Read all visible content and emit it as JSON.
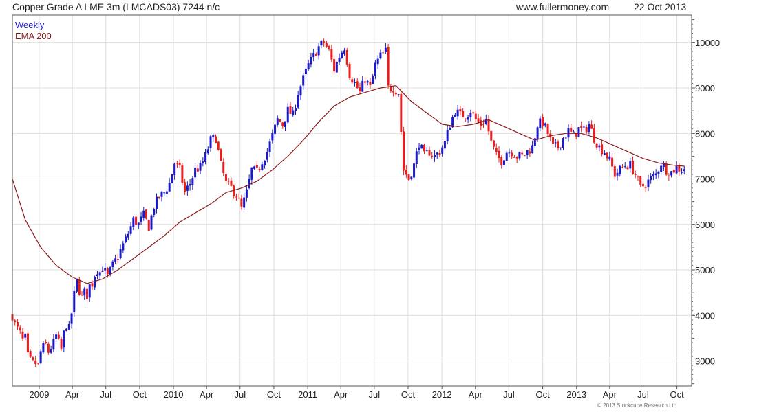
{
  "header": {
    "title": "Copper Grade A LME 3m (LMCADS03) 7244 n/c",
    "site": "www.fullermoney.com",
    "date": "22 Oct 2013"
  },
  "copyright": "© 2013 Stockcube Research Ltd",
  "colors": {
    "up": "#1a1acc",
    "down": "#ee1c1c",
    "ema": "#8b1a1a",
    "grid": "#dcdcdc",
    "frame": "#555555"
  },
  "chart_data": {
    "type": "candlestick",
    "frequency": "weekly",
    "legend": [
      {
        "name": "Weekly",
        "color": "#1a1acc"
      },
      {
        "name": "EMA 200",
        "color": "#8b1a1a"
      }
    ],
    "legend_position": "top-left",
    "ylim": [
      2450,
      10600
    ],
    "yticks": [
      3000,
      4000,
      5000,
      6000,
      7000,
      8000,
      9000,
      10000
    ],
    "y_axis_side": "right",
    "grid": true,
    "x_ticks": [
      {
        "label": "2009",
        "date": "2009-01-01"
      },
      {
        "label": "Apr",
        "date": "2009-04-01"
      },
      {
        "label": "Jul",
        "date": "2009-07-01"
      },
      {
        "label": "Oct",
        "date": "2009-10-01"
      },
      {
        "label": "2010",
        "date": "2010-01-01"
      },
      {
        "label": "Apr",
        "date": "2010-04-01"
      },
      {
        "label": "Jul",
        "date": "2010-07-01"
      },
      {
        "label": "Oct",
        "date": "2010-10-01"
      },
      {
        "label": "2011",
        "date": "2011-01-01"
      },
      {
        "label": "Apr",
        "date": "2011-04-01"
      },
      {
        "label": "Jul",
        "date": "2011-07-01"
      },
      {
        "label": "Oct",
        "date": "2011-10-01"
      },
      {
        "label": "2012",
        "date": "2012-01-01"
      },
      {
        "label": "Apr",
        "date": "2012-04-01"
      },
      {
        "label": "Jul",
        "date": "2012-07-01"
      },
      {
        "label": "Oct",
        "date": "2012-10-01"
      },
      {
        "label": "2013",
        "date": "2013-01-01"
      },
      {
        "label": "Apr",
        "date": "2013-04-01"
      },
      {
        "label": "Jul",
        "date": "2013-07-01"
      },
      {
        "label": "Oct",
        "date": "2013-10-01"
      }
    ],
    "x_range": [
      "2008-10-20",
      "2013-11-10"
    ],
    "close_path": [
      [
        "2008-10-20",
        4000
      ],
      [
        "2008-10-27",
        3800
      ],
      [
        "2008-11-03",
        3700
      ],
      [
        "2008-11-10",
        3600
      ],
      [
        "2008-11-17",
        3450
      ],
      [
        "2008-11-24",
        3500
      ],
      [
        "2008-12-01",
        3100
      ],
      [
        "2008-12-08",
        3000
      ],
      [
        "2008-12-15",
        2950
      ],
      [
        "2008-12-22",
        2950
      ],
      [
        "2008-12-29",
        2900
      ],
      [
        "2009-01-05",
        3200
      ],
      [
        "2009-01-12",
        3300
      ],
      [
        "2009-01-19",
        3350
      ],
      [
        "2009-01-26",
        3200
      ],
      [
        "2009-02-02",
        3300
      ],
      [
        "2009-02-09",
        3400
      ],
      [
        "2009-02-16",
        3550
      ],
      [
        "2009-02-23",
        3400
      ],
      [
        "2009-03-02",
        3250
      ],
      [
        "2009-03-09",
        3600
      ],
      [
        "2009-03-16",
        3800
      ],
      [
        "2009-03-23",
        3700
      ],
      [
        "2009-03-30",
        4050
      ],
      [
        "2009-04-06",
        4450
      ],
      [
        "2009-04-13",
        4750
      ],
      [
        "2009-04-20",
        4550
      ],
      [
        "2009-04-27",
        4400
      ],
      [
        "2009-05-04",
        4500
      ],
      [
        "2009-05-11",
        4450
      ],
      [
        "2009-05-18",
        4650
      ],
      [
        "2009-05-25",
        4700
      ],
      [
        "2009-06-01",
        4900
      ],
      [
        "2009-06-08",
        5000
      ],
      [
        "2009-06-15",
        4950
      ],
      [
        "2009-06-22",
        5050
      ],
      [
        "2009-07-06",
        4850
      ],
      [
        "2009-07-20",
        5100
      ],
      [
        "2009-08-03",
        5300
      ],
      [
        "2009-08-17",
        5550
      ],
      [
        "2009-08-31",
        5800
      ],
      [
        "2009-09-14",
        6100
      ],
      [
        "2009-09-28",
        6000
      ],
      [
        "2009-10-12",
        6200
      ],
      [
        "2009-10-26",
        5950
      ],
      [
        "2009-11-09",
        6400
      ],
      [
        "2009-11-23",
        6600
      ],
      [
        "2009-12-07",
        6700
      ],
      [
        "2009-12-21",
        6900
      ],
      [
        "2010-01-04",
        7350
      ],
      [
        "2010-01-18",
        7200
      ],
      [
        "2010-02-01",
        6700
      ],
      [
        "2010-02-15",
        6900
      ],
      [
        "2010-03-01",
        7200
      ],
      [
        "2010-03-15",
        7250
      ],
      [
        "2010-03-29",
        7500
      ],
      [
        "2010-04-12",
        7850
      ],
      [
        "2010-04-26",
        7900
      ],
      [
        "2010-05-10",
        7300
      ],
      [
        "2010-05-24",
        6900
      ],
      [
        "2010-06-07",
        6800
      ],
      [
        "2010-06-21",
        6650
      ],
      [
        "2010-07-05",
        6350
      ],
      [
        "2010-07-19",
        6700
      ],
      [
        "2010-08-02",
        7200
      ],
      [
        "2010-08-16",
        7150
      ],
      [
        "2010-08-30",
        7400
      ],
      [
        "2010-09-13",
        7600
      ],
      [
        "2010-09-27",
        7950
      ],
      [
        "2010-10-11",
        8300
      ],
      [
        "2010-10-25",
        8200
      ],
      [
        "2010-11-08",
        8500
      ],
      [
        "2010-11-22",
        8400
      ],
      [
        "2010-12-06",
        8900
      ],
      [
        "2010-12-20",
        9200
      ],
      [
        "2011-01-03",
        9500
      ],
      [
        "2011-01-17",
        9700
      ],
      [
        "2011-01-31",
        9900
      ],
      [
        "2011-02-14",
        10000
      ],
      [
        "2011-02-28",
        9800
      ],
      [
        "2011-03-14",
        9400
      ],
      [
        "2011-03-28",
        9700
      ],
      [
        "2011-04-11",
        9900
      ],
      [
        "2011-04-25",
        9300
      ],
      [
        "2011-05-09",
        9100
      ],
      [
        "2011-05-23",
        8900
      ],
      [
        "2011-06-06",
        9200
      ],
      [
        "2011-06-20",
        9000
      ],
      [
        "2011-07-04",
        9500
      ],
      [
        "2011-07-18",
        9700
      ],
      [
        "2011-08-01",
        9800
      ],
      [
        "2011-08-08",
        9000
      ],
      [
        "2011-08-22",
        9000
      ],
      [
        "2011-09-05",
        8900
      ],
      [
        "2011-09-19",
        7200
      ],
      [
        "2011-10-03",
        7000
      ],
      [
        "2011-10-17",
        7300
      ],
      [
        "2011-10-31",
        7800
      ],
      [
        "2011-11-14",
        7500
      ],
      [
        "2011-11-28",
        7600
      ],
      [
        "2011-12-12",
        7500
      ],
      [
        "2011-12-26",
        7600
      ],
      [
        "2012-01-09",
        7800
      ],
      [
        "2012-01-23",
        8200
      ],
      [
        "2012-02-06",
        8500
      ],
      [
        "2012-02-20",
        8400
      ],
      [
        "2012-03-05",
        8400
      ],
      [
        "2012-03-19",
        8500
      ],
      [
        "2012-04-02",
        8300
      ],
      [
        "2012-04-16",
        8200
      ],
      [
        "2012-04-30",
        8300
      ],
      [
        "2012-05-14",
        7800
      ],
      [
        "2012-05-28",
        7500
      ],
      [
        "2012-06-11",
        7400
      ],
      [
        "2012-06-25",
        7600
      ],
      [
        "2012-07-09",
        7600
      ],
      [
        "2012-07-23",
        7500
      ],
      [
        "2012-08-06",
        7500
      ],
      [
        "2012-08-20",
        7600
      ],
      [
        "2012-09-03",
        7700
      ],
      [
        "2012-09-17",
        8200
      ],
      [
        "2012-10-01",
        8250
      ],
      [
        "2012-10-15",
        8000
      ],
      [
        "2012-10-29",
        7700
      ],
      [
        "2012-11-12",
        7700
      ],
      [
        "2012-11-26",
        7900
      ],
      [
        "2012-12-10",
        8050
      ],
      [
        "2012-12-24",
        7950
      ],
      [
        "2013-01-07",
        8100
      ],
      [
        "2013-01-21",
        8050
      ],
      [
        "2013-02-04",
        8200
      ],
      [
        "2013-02-18",
        7900
      ],
      [
        "2013-03-04",
        7700
      ],
      [
        "2013-03-18",
        7600
      ],
      [
        "2013-04-01",
        7400
      ],
      [
        "2013-04-15",
        7100
      ],
      [
        "2013-04-29",
        7200
      ],
      [
        "2013-05-13",
        7300
      ],
      [
        "2013-05-27",
        7300
      ],
      [
        "2013-06-10",
        7100
      ],
      [
        "2013-06-24",
        6800
      ],
      [
        "2013-07-08",
        6900
      ],
      [
        "2013-07-22",
        7000
      ],
      [
        "2013-08-05",
        7100
      ],
      [
        "2013-08-19",
        7350
      ],
      [
        "2013-09-02",
        7200
      ],
      [
        "2013-09-16",
        7150
      ],
      [
        "2013-09-30",
        7250
      ],
      [
        "2013-10-14",
        7200
      ],
      [
        "2013-10-21",
        7244
      ]
    ],
    "ema_200": [
      [
        "2008-10-20",
        7000
      ],
      [
        "2008-11-24",
        6100
      ],
      [
        "2009-01-05",
        5500
      ],
      [
        "2009-02-16",
        5100
      ],
      [
        "2009-03-30",
        4850
      ],
      [
        "2009-05-11",
        4700
      ],
      [
        "2009-06-22",
        4800
      ],
      [
        "2009-08-03",
        5000
      ],
      [
        "2009-09-14",
        5250
      ],
      [
        "2009-10-26",
        5500
      ],
      [
        "2009-12-07",
        5750
      ],
      [
        "2010-01-18",
        6050
      ],
      [
        "2010-03-01",
        6250
      ],
      [
        "2010-04-12",
        6450
      ],
      [
        "2010-05-24",
        6700
      ],
      [
        "2010-07-05",
        6800
      ],
      [
        "2010-08-16",
        6950
      ],
      [
        "2010-09-27",
        7200
      ],
      [
        "2010-11-08",
        7500
      ],
      [
        "2010-12-20",
        7850
      ],
      [
        "2011-01-31",
        8250
      ],
      [
        "2011-03-14",
        8600
      ],
      [
        "2011-04-25",
        8800
      ],
      [
        "2011-06-06",
        8900
      ],
      [
        "2011-07-18",
        9000
      ],
      [
        "2011-08-29",
        9050
      ],
      [
        "2011-10-10",
        8700
      ],
      [
        "2011-11-21",
        8450
      ],
      [
        "2012-01-02",
        8200
      ],
      [
        "2012-02-13",
        8150
      ],
      [
        "2012-03-26",
        8200
      ],
      [
        "2012-05-07",
        8300
      ],
      [
        "2012-06-18",
        8150
      ],
      [
        "2012-07-30",
        8000
      ],
      [
        "2012-09-10",
        7850
      ],
      [
        "2012-10-22",
        7950
      ],
      [
        "2012-12-03",
        8000
      ],
      [
        "2013-01-14",
        8000
      ],
      [
        "2013-02-25",
        7900
      ],
      [
        "2013-04-08",
        7750
      ],
      [
        "2013-05-20",
        7600
      ],
      [
        "2013-07-01",
        7450
      ],
      [
        "2013-08-12",
        7350
      ],
      [
        "2013-09-23",
        7300
      ],
      [
        "2013-10-21",
        7280
      ]
    ]
  }
}
